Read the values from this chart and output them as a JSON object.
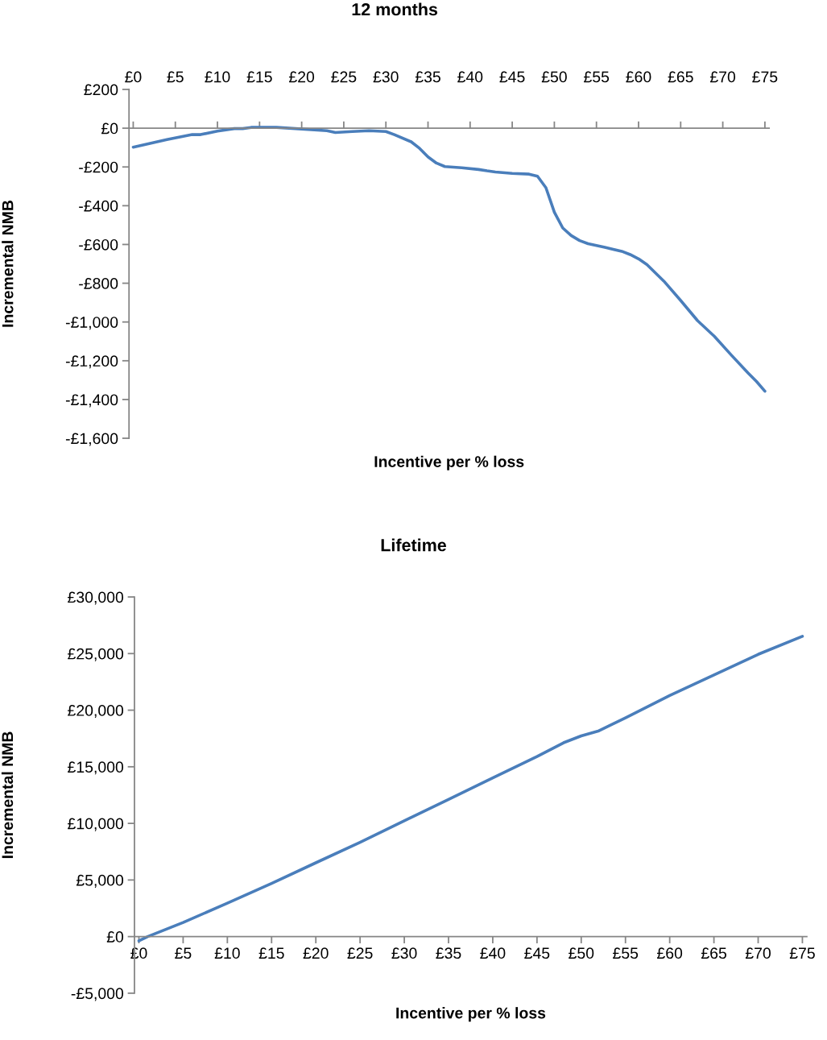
{
  "chart_data": [
    {
      "type": "line",
      "title": "12 months",
      "xlabel": "Incentive per % loss",
      "ylabel": "Incremental NMB",
      "xlim": [
        -0.5,
        75.5
      ],
      "xticks": [
        {
          "value": 0,
          "label": "£0"
        },
        {
          "value": 5,
          "label": "£5"
        },
        {
          "value": 10,
          "label": "£10"
        },
        {
          "value": 15,
          "label": "£15"
        },
        {
          "value": 20,
          "label": "£20"
        },
        {
          "value": 25,
          "label": "£25"
        },
        {
          "value": 30,
          "label": "£30"
        },
        {
          "value": 35,
          "label": "£35"
        },
        {
          "value": 40,
          "label": "£40"
        },
        {
          "value": 45,
          "label": "£45"
        },
        {
          "value": 50,
          "label": "£50"
        },
        {
          "value": 55,
          "label": "£55"
        },
        {
          "value": 60,
          "label": "£60"
        },
        {
          "value": 65,
          "label": "£65"
        },
        {
          "value": 70,
          "label": "£70"
        },
        {
          "value": 75,
          "label": "£75"
        }
      ],
      "ylim": [
        -1600,
        200
      ],
      "yticks": [
        {
          "value": 200,
          "label": "£200"
        },
        {
          "value": 0,
          "label": "£0"
        },
        {
          "value": -200,
          "label": "-£200"
        },
        {
          "value": -400,
          "label": "-£400"
        },
        {
          "value": -600,
          "label": "-£600"
        },
        {
          "value": -800,
          "label": "-£800"
        },
        {
          "value": -1000,
          "label": "-£1,000"
        },
        {
          "value": -1200,
          "label": "-£1,200"
        },
        {
          "value": -1400,
          "label": "-£1,400"
        },
        {
          "value": -1600,
          "label": "-£1,600"
        }
      ],
      "series": [
        {
          "color": "#4a7ebb",
          "x": [
            0,
            2,
            4,
            7,
            8,
            10,
            12,
            13,
            14,
            17,
            20,
            23,
            24,
            26,
            28,
            30,
            31,
            33,
            34,
            35,
            36,
            37,
            39,
            41,
            42,
            43,
            45,
            47,
            48,
            49,
            50,
            51,
            52,
            53,
            54,
            56,
            58,
            59,
            60,
            61,
            63,
            65,
            67,
            69,
            71,
            73,
            74,
            75
          ],
          "values": [
            -98,
            -78,
            -59,
            -33,
            -33,
            -15,
            -2,
            -2,
            4,
            4,
            -4,
            -13,
            -22,
            -17,
            -13,
            -17,
            -33,
            -70,
            -104,
            -148,
            -180,
            -198,
            -204,
            -213,
            -220,
            -226,
            -233,
            -237,
            -248,
            -307,
            -433,
            -515,
            -554,
            -580,
            -596,
            -615,
            -635,
            -652,
            -674,
            -704,
            -789,
            -889,
            -993,
            -1074,
            -1170,
            -1263,
            -1307,
            -1357
          ]
        }
      ]
    },
    {
      "type": "line",
      "title": "Lifetime",
      "xlabel": "Incentive per % loss",
      "ylabel": "Incremental NMB",
      "xlim": [
        -0.5,
        75.5
      ],
      "xticks": [
        {
          "value": 0,
          "label": "£0"
        },
        {
          "value": 5,
          "label": "£5"
        },
        {
          "value": 10,
          "label": "£10"
        },
        {
          "value": 15,
          "label": "£15"
        },
        {
          "value": 20,
          "label": "£20"
        },
        {
          "value": 25,
          "label": "£25"
        },
        {
          "value": 30,
          "label": "£30"
        },
        {
          "value": 35,
          "label": "£35"
        },
        {
          "value": 40,
          "label": "£40"
        },
        {
          "value": 45,
          "label": "£45"
        },
        {
          "value": 50,
          "label": "£50"
        },
        {
          "value": 55,
          "label": "£55"
        },
        {
          "value": 60,
          "label": "£60"
        },
        {
          "value": 65,
          "label": "£65"
        },
        {
          "value": 70,
          "label": "£70"
        },
        {
          "value": 75,
          "label": "£75"
        }
      ],
      "ylim": [
        -5000,
        30000
      ],
      "yticks": [
        {
          "value": 30000,
          "label": "£30,000"
        },
        {
          "value": 25000,
          "label": "£25,000"
        },
        {
          "value": 20000,
          "label": "£20,000"
        },
        {
          "value": 15000,
          "label": "£15,000"
        },
        {
          "value": 10000,
          "label": "£10,000"
        },
        {
          "value": 5000,
          "label": "£5,000"
        },
        {
          "value": 0,
          "label": "£0"
        },
        {
          "value": -5000,
          "label": "-£5,000"
        }
      ],
      "series": [
        {
          "color": "#4a7ebb",
          "x": [
            0,
            1,
            5,
            10,
            15,
            20,
            25,
            30,
            35,
            40,
            45,
            48,
            50,
            52,
            55,
            60,
            65,
            70,
            75
          ],
          "values": [
            -380,
            0,
            1250,
            2950,
            4700,
            6520,
            8330,
            10230,
            12120,
            14020,
            15900,
            17120,
            17730,
            18180,
            19320,
            21290,
            23110,
            24930,
            26520
          ]
        }
      ]
    }
  ]
}
